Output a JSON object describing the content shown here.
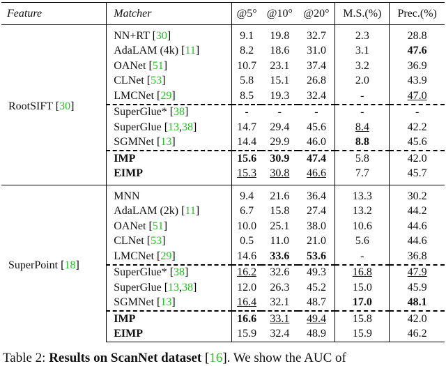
{
  "table": {
    "columns": [
      "Feature",
      "Matcher",
      "@5°",
      "@10°",
      "@20°",
      "M.S.(%)",
      "Prec.(%)"
    ],
    "groups": [
      {
        "feature": {
          "name": "RootSIFT",
          "refs": [
            "30"
          ]
        },
        "dashed_before": [
          5,
          8
        ],
        "rows": [
          {
            "matcher": {
              "name": "NN+RT",
              "refs": [
                "30"
              ]
            },
            "values": [
              "9.1",
              "19.8",
              "32.7",
              "2.3",
              "28.8"
            ]
          },
          {
            "matcher": {
              "name": "AdaLAM (4k)",
              "refs": [
                "11"
              ]
            },
            "values": [
              "8.2",
              "18.6",
              "31.0",
              "3.1",
              "47.6"
            ],
            "bold": [
              4
            ]
          },
          {
            "matcher": {
              "name": "OANet",
              "refs": [
                "51"
              ]
            },
            "values": [
              "10.7",
              "23.1",
              "37.4",
              "3.2",
              "36.9"
            ]
          },
          {
            "matcher": {
              "name": "CLNet",
              "refs": [
                "53"
              ]
            },
            "values": [
              "5.8",
              "15.1",
              "26.8",
              "2.0",
              "43.9"
            ]
          },
          {
            "matcher": {
              "name": "LMCNet",
              "refs": [
                "29"
              ]
            },
            "values": [
              "8.5",
              "19.3",
              "32.4",
              "-",
              "47.0"
            ],
            "underline": [
              4
            ]
          },
          {
            "matcher": {
              "name": "SuperGlue*",
              "refs": [
                "38"
              ]
            },
            "values": [
              "-",
              "-",
              "-",
              "-",
              "-"
            ]
          },
          {
            "matcher": {
              "name": "SuperGlue",
              "refs": [
                "13",
                "38"
              ]
            },
            "values": [
              "14.7",
              "29.4",
              "45.6",
              "8.4",
              "42.2"
            ],
            "underline": [
              3
            ]
          },
          {
            "matcher": {
              "name": "SGMNet",
              "refs": [
                "13"
              ]
            },
            "values": [
              "14.4",
              "29.9",
              "46.0",
              "8.8",
              "45.6"
            ],
            "bold": [
              3
            ]
          },
          {
            "matcher": {
              "name": "IMP",
              "bold": true
            },
            "values": [
              "15.6",
              "30.9",
              "47.4",
              "5.8",
              "42.0"
            ],
            "bold": [
              0,
              1,
              2
            ]
          },
          {
            "matcher": {
              "name": "EIMP",
              "bold": true
            },
            "values": [
              "15.3",
              "30.8",
              "46.6",
              "7.7",
              "45.7"
            ],
            "underline": [
              0,
              1,
              2
            ]
          }
        ]
      },
      {
        "feature": {
          "name": "SuperPoint",
          "refs": [
            "18"
          ]
        },
        "dashed_before": [
          5,
          8
        ],
        "rows": [
          {
            "matcher": {
              "name": "MNN"
            },
            "values": [
              "9.4",
              "21.6",
              "36.4",
              "13.3",
              "30.2"
            ]
          },
          {
            "matcher": {
              "name": "AdaLAM (2k)",
              "refs": [
                "11"
              ]
            },
            "values": [
              "6.7",
              "15.8",
              "27.4",
              "13.2",
              "44.2"
            ]
          },
          {
            "matcher": {
              "name": "OANet",
              "refs": [
                "51"
              ]
            },
            "values": [
              "10.0",
              "25.1",
              "38.0",
              "10.6",
              "44.6"
            ]
          },
          {
            "matcher": {
              "name": "CLNet",
              "refs": [
                "53"
              ]
            },
            "values": [
              "0.5",
              "11.0",
              "21.0",
              "5.6",
              "44.6"
            ]
          },
          {
            "matcher": {
              "name": "LMCNet",
              "refs": [
                "29"
              ]
            },
            "values": [
              "14.6",
              "33.6",
              "53.6",
              "-",
              "36.8"
            ],
            "bold": [
              1,
              2
            ]
          },
          {
            "matcher": {
              "name": "SuperGlue*",
              "refs": [
                "38"
              ]
            },
            "values": [
              "16.2",
              "32.6",
              "49.3",
              "16.8",
              "47.9"
            ],
            "underline": [
              0,
              3,
              4
            ]
          },
          {
            "matcher": {
              "name": "SuperGlue",
              "refs": [
                "13",
                "38"
              ]
            },
            "values": [
              "12.0",
              "26.3",
              "45.2",
              "15.0",
              "45.9"
            ]
          },
          {
            "matcher": {
              "name": "SGMNet",
              "refs": [
                "13"
              ]
            },
            "values": [
              "16.4",
              "32.1",
              "48.7",
              "17.0",
              "48.1"
            ],
            "underline": [
              0
            ],
            "bold": [
              3,
              4
            ]
          },
          {
            "matcher": {
              "name": "IMP",
              "bold": true
            },
            "values": [
              "16.6",
              "33.1",
              "49.4",
              "15.8",
              "42.0"
            ],
            "bold": [
              0
            ],
            "underline": [
              1,
              2
            ]
          },
          {
            "matcher": {
              "name": "EIMP",
              "bold": true
            },
            "values": [
              "15.9",
              "32.4",
              "48.9",
              "15.9",
              "46.2"
            ]
          }
        ]
      }
    ]
  },
  "caption": {
    "label": "Table 2:",
    "title": "Results on ScanNet dataset",
    "refs": [
      "16"
    ],
    "text": ". We show the AUC of"
  }
}
